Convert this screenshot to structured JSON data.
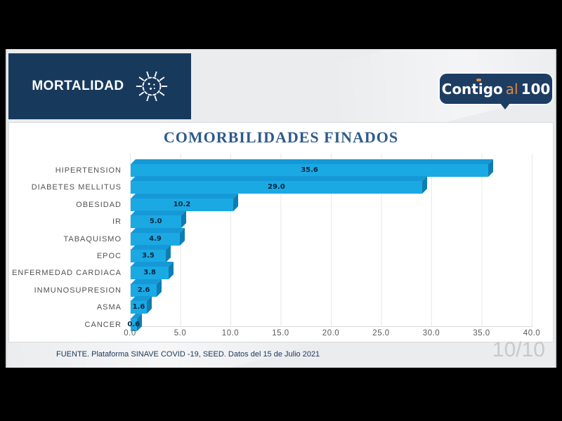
{
  "header": {
    "title": "MORTALIDAD"
  },
  "icons": {
    "header": "virus-icon"
  },
  "logo": {
    "part1": "Contigo",
    "part2": "al",
    "part3": "100",
    "bg": "#1d3d63",
    "accent": "#e08a3c"
  },
  "chart_data": {
    "type": "bar",
    "orientation": "horizontal",
    "title": "COMORBILIDADES FINADOS",
    "categories": [
      "HIPERTENSION",
      "DIABETES MELLITUS",
      "OBESIDAD",
      "IR",
      "TABAQUISMO",
      "EPOC",
      "ENFERMEDAD CARDIACA",
      "INMUNOSUPRESION",
      "ASMA",
      "CANCER"
    ],
    "values": [
      35.6,
      29.0,
      10.2,
      5.0,
      4.9,
      3.5,
      3.8,
      2.6,
      1.6,
      0.6
    ],
    "xlim": [
      0,
      40
    ],
    "x_ticks": [
      "0.0",
      "5.0",
      "10.0",
      "15.0",
      "20.0",
      "25.0",
      "30.0",
      "35.0",
      "40.0"
    ],
    "grid": true,
    "value_labels": true,
    "legend": "none",
    "bar_color": "#1ba9e4",
    "bar_top_color": "#1599d6",
    "bar_side_color": "#0d7db3",
    "title_color": "#2e5b8c"
  },
  "footer": {
    "source": "FUENTE. Plataforma SINAVE COVID -19, SEED. Datos del 15 de Julio 2021",
    "page_indicator": "10/10"
  }
}
